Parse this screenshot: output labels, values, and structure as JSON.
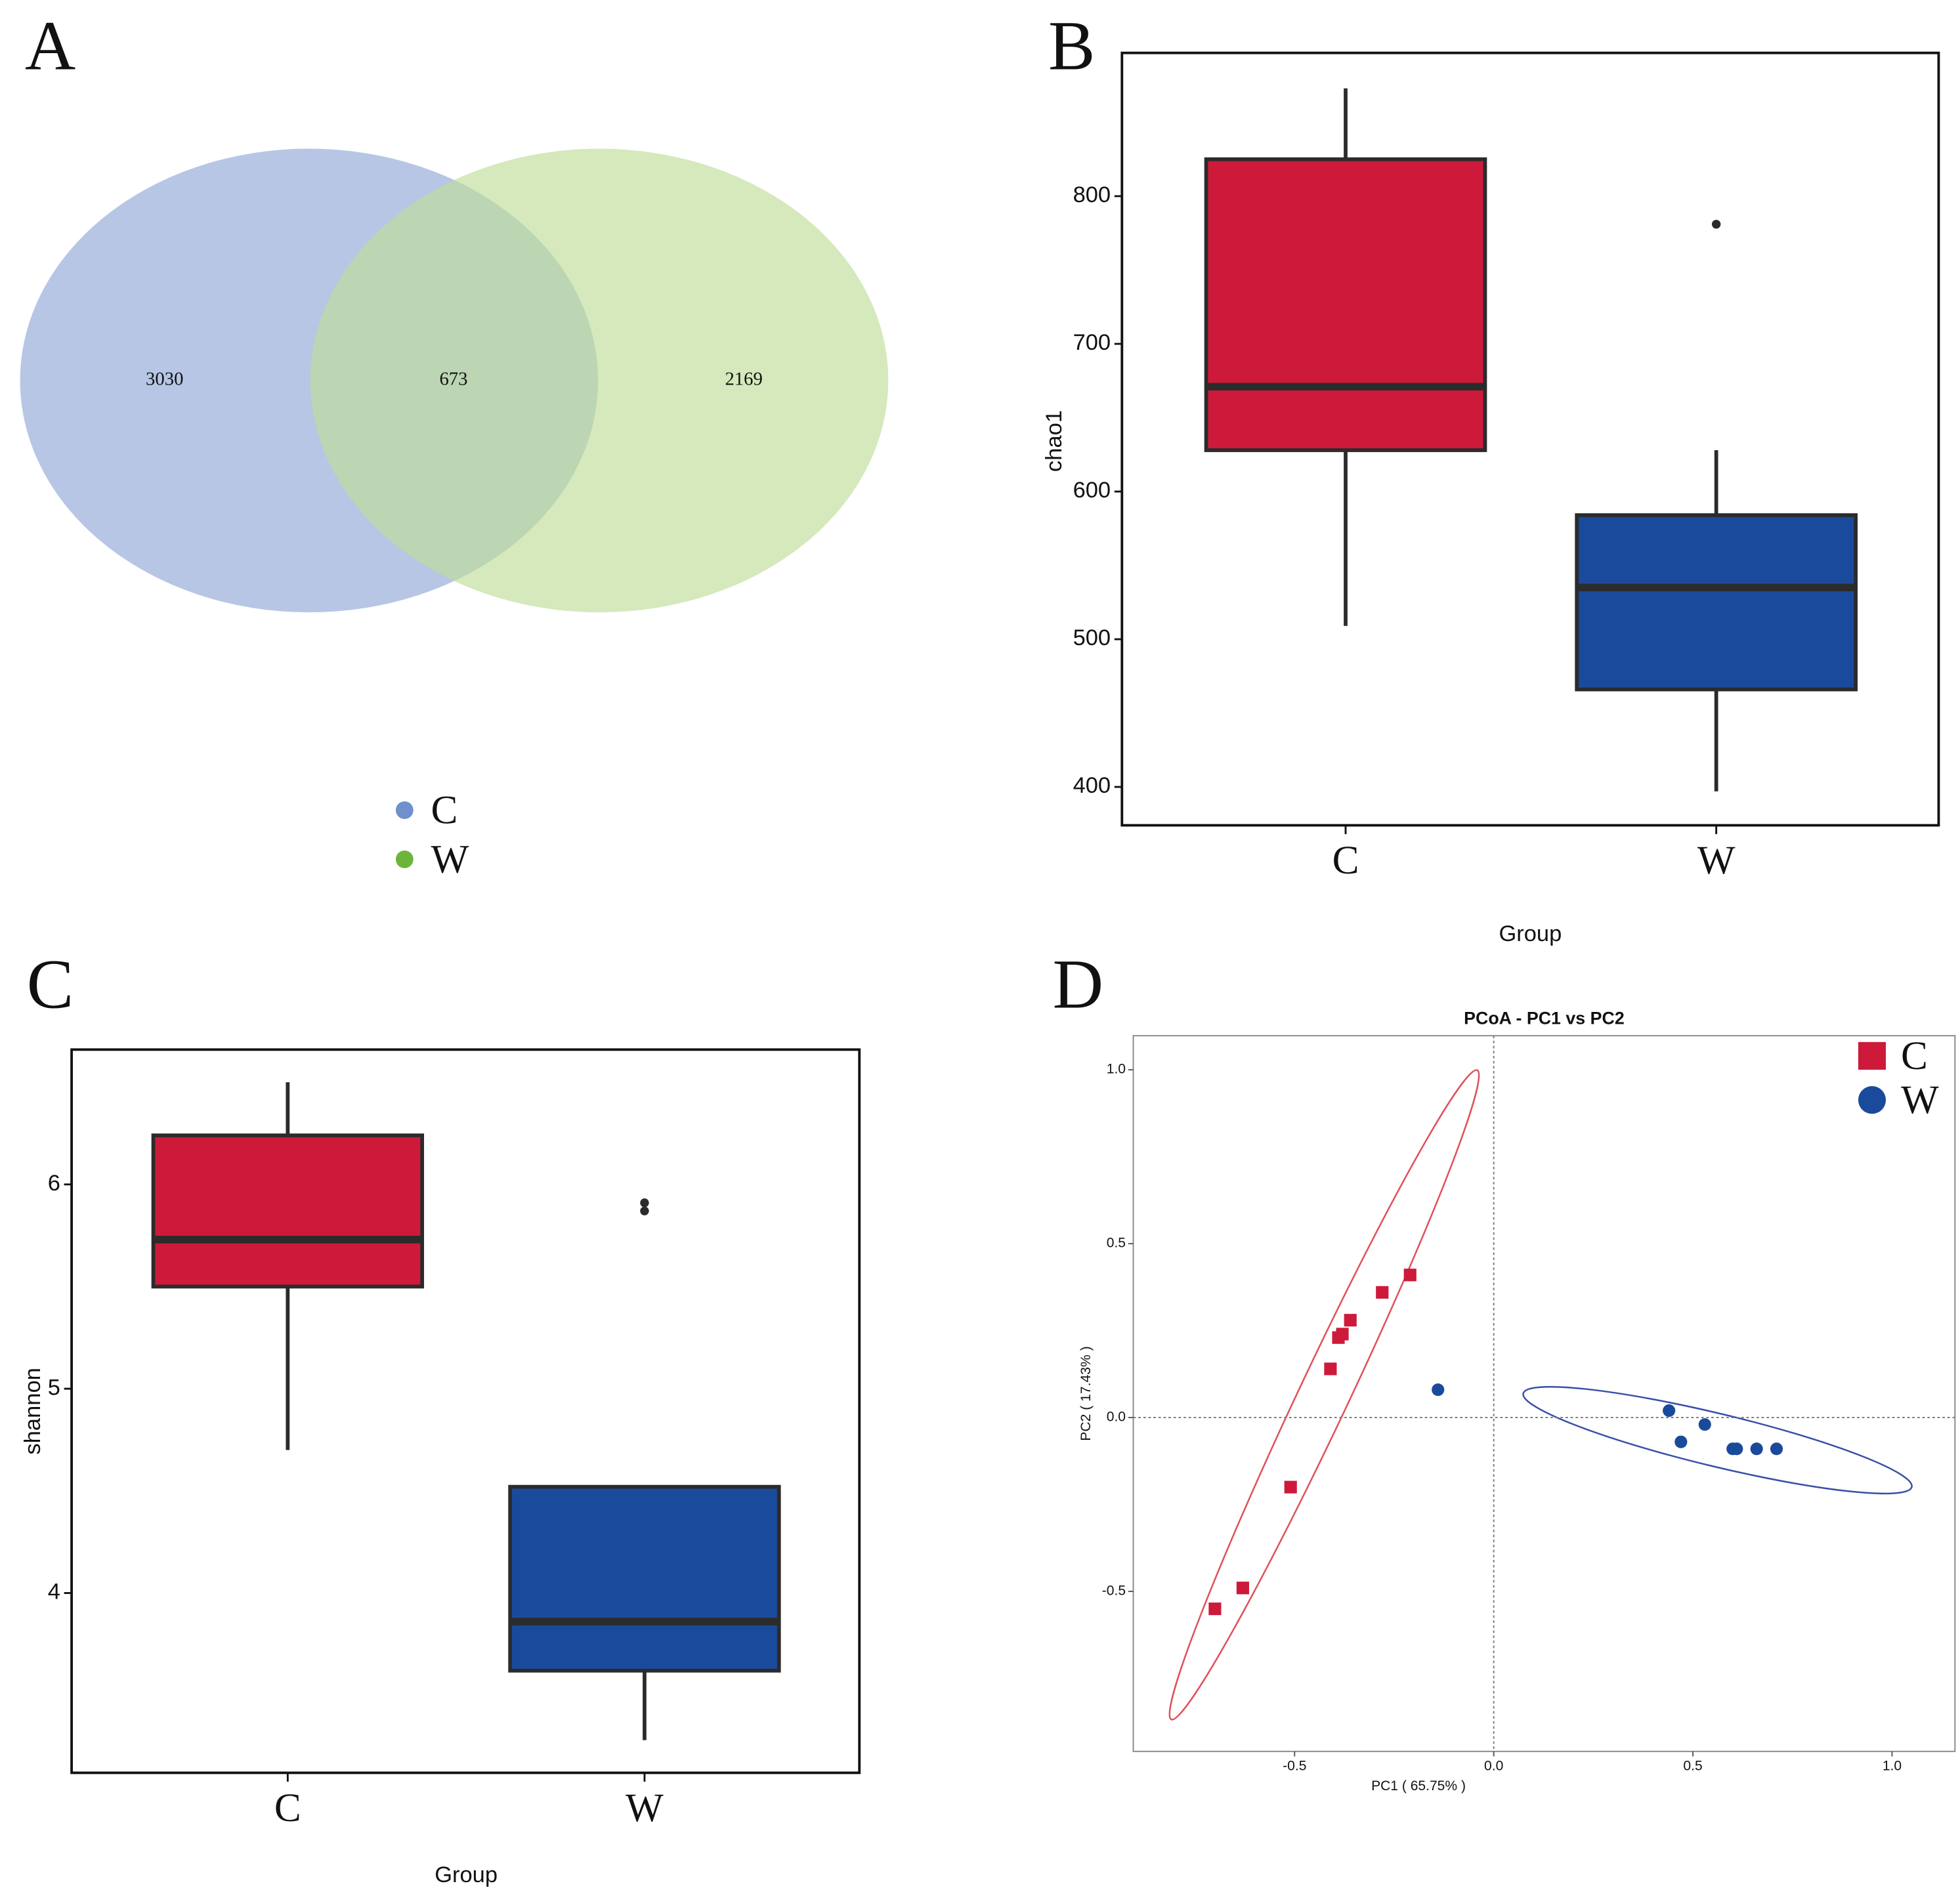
{
  "chart_data": [
    {
      "type": "venn",
      "panel": "A",
      "sets": [
        {
          "name": "C",
          "color": "#b3c3e3",
          "legend_color": "#6e90cc"
        },
        {
          "name": "W",
          "color": "#bedd98",
          "legend_color": "#6cb43c"
        }
      ],
      "values": [
        3030,
        673,
        2169
      ]
    },
    {
      "type": "box",
      "panel": "B",
      "xlabel": "Group",
      "ylabel": "chao1",
      "categories": [
        "C",
        "W"
      ],
      "boxes": [
        {
          "color": "#cd1a3a",
          "whisker_low": 509,
          "q1": 628,
          "median": 671,
          "q3": 825,
          "whisker_high": 873,
          "outliers": []
        },
        {
          "color": "#1a4a9b",
          "whisker_low": 397,
          "q1": 466,
          "median": 535,
          "q3": 584,
          "whisker_high": 628,
          "outliers": [
            781
          ]
        }
      ],
      "ylim": [
        374,
        897
      ],
      "yticks": [
        400,
        500,
        600,
        700,
        800
      ]
    },
    {
      "type": "box",
      "panel": "C",
      "xlabel": "Group",
      "ylabel": "shannon",
      "categories": [
        "C",
        "W"
      ],
      "boxes": [
        {
          "color": "#cd1a3a",
          "whisker_low": 4.7,
          "q1": 5.5,
          "median": 5.73,
          "q3": 6.24,
          "whisker_high": 6.5,
          "outliers": []
        },
        {
          "color": "#1a4a9b",
          "whisker_low": 3.28,
          "q1": 3.62,
          "median": 3.86,
          "q3": 4.52,
          "whisker_high": 4.52,
          "outliers": [
            5.91,
            5.87
          ]
        }
      ],
      "ylim": [
        3.12,
        6.66
      ],
      "yticks": [
        4,
        5,
        6
      ]
    },
    {
      "type": "scatter",
      "panel": "D",
      "title": "PCoA - PC1 vs PC2",
      "xlabel": "PC1 ( 65.75% )",
      "ylabel": "PC2 ( 17.43% )",
      "series": [
        {
          "name": "C",
          "color": "#cd1a3a",
          "marker": "square",
          "x": [
            -0.7,
            -0.63,
            -0.51,
            -0.41,
            -0.39,
            -0.38,
            -0.36,
            -0.28,
            -0.21
          ],
          "values": [
            -0.55,
            -0.49,
            -0.2,
            0.14,
            0.23,
            0.24,
            0.28,
            0.36,
            0.41
          ]
        },
        {
          "name": "W",
          "color": "#1a4a9b",
          "marker": "circle",
          "x": [
            -0.14,
            0.44,
            0.47,
            0.53,
            0.6,
            0.61,
            0.66,
            0.71
          ],
          "values": [
            0.08,
            0.02,
            -0.07,
            -0.02,
            -0.09,
            -0.09,
            -0.09,
            -0.09
          ]
        }
      ],
      "xlim": [
        -0.905,
        1.158
      ],
      "ylim": [
        -0.96,
        1.098
      ],
      "xticks": [
        -0.5,
        {
          "value": 0,
          "label": "0.0"
        },
        0.5,
        {
          "value": 1,
          "label": "1.0"
        }
      ],
      "yticks": [
        -0.5,
        {
          "value": 0,
          "label": "0.0"
        },
        0.5,
        {
          "value": 1,
          "label": "1.0"
        }
      ],
      "zero_lines": true,
      "legend": "upper right"
    }
  ]
}
